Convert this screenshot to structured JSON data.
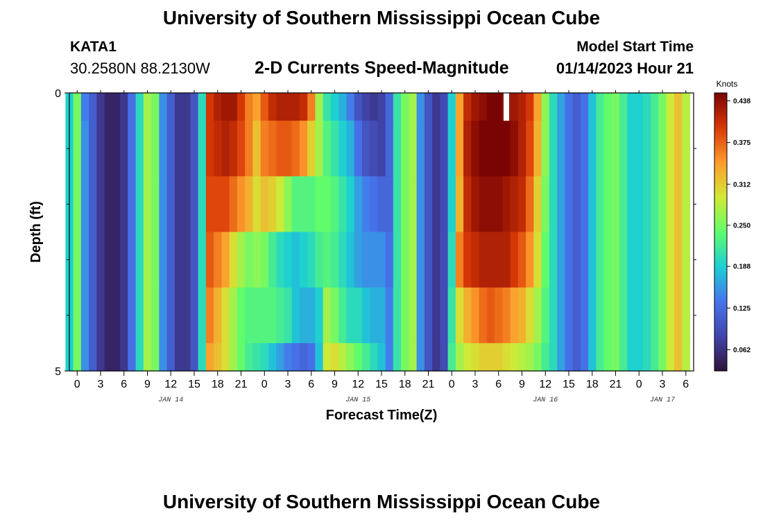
{
  "header": {
    "title": "University of Southern Mississippi Ocean Cube",
    "station": "KATA1",
    "coordinates": "30.2580N  88.2130W",
    "subtitle": "2-D Currents Speed-Magnitude",
    "model_start_label": "Model Start Time",
    "model_start_value": "01/14/2023 Hour 21"
  },
  "footer": {
    "title": "University of Southern Mississippi Ocean Cube"
  },
  "colors": {
    "colormap": [
      "#30123b",
      "#4145ab",
      "#4675ed",
      "#1bcfd4",
      "#61fc6c",
      "#d2e935",
      "#fe9b2d",
      "#d93806",
      "#7a0403"
    ],
    "gap_color": "#ffffff",
    "frame": "#000000"
  },
  "chart_data": {
    "type": "heatmap",
    "title": "2-D Currents Speed-Magnitude",
    "xlabel": "Forecast Time(Z)",
    "ylabel": "Depth (ft)",
    "colorbar_label": "Knots",
    "colorbar_ticks": [
      "0.062",
      "0.125",
      "0.188",
      "0.250",
      "0.312",
      "0.375",
      "0.438"
    ],
    "colorbar_tick_values": [
      0.062,
      0.125,
      0.188,
      0.25,
      0.312,
      0.375,
      0.438
    ],
    "vmin": 0.03,
    "vmax": 0.45,
    "x_unit": "forecast hour from 00Z Jan 14",
    "x_range": [
      -1,
      79
    ],
    "x_ticks": [
      0,
      3,
      6,
      9,
      12,
      15,
      18,
      21,
      24,
      27,
      30,
      33,
      36,
      39,
      42,
      45,
      48,
      51,
      54,
      57,
      60,
      63,
      66,
      69,
      72,
      75,
      78
    ],
    "x_tick_labels": [
      "0",
      "3",
      "6",
      "9",
      "12",
      "15",
      "18",
      "21",
      "0",
      "3",
      "6",
      "9",
      "12",
      "15",
      "18",
      "21",
      "0",
      "3",
      "6",
      "9",
      "12",
      "15",
      "18",
      "21",
      "0",
      "3",
      "6"
    ],
    "date_labels": [
      {
        "hour": 12,
        "text": "JAN 14"
      },
      {
        "hour": 36,
        "text": "JAN 15"
      },
      {
        "hour": 60,
        "text": "JAN 16"
      },
      {
        "hour": 75,
        "text": "JAN 17"
      }
    ],
    "y_ticks": [
      0,
      5
    ],
    "y_tick_labels": [
      "0",
      "5"
    ],
    "y_minor_ticks": [
      1,
      2,
      3,
      4
    ],
    "depth_bins_ft": [
      [
        0,
        0.5
      ],
      [
        0.5,
        1.5
      ],
      [
        1.5,
        2.5
      ],
      [
        2.5,
        3.5
      ],
      [
        3.5,
        4.5
      ],
      [
        4.5,
        5
      ]
    ],
    "missing_cells": [
      {
        "hour": 55,
        "depth_row": 0
      }
    ],
    "rows": [
      [
        0.19,
        0.25,
        0.14,
        0.11,
        0.07,
        0.05,
        0.05,
        0.07,
        0.13,
        0.2,
        0.27,
        0.25,
        0.15,
        0.11,
        0.07,
        0.07,
        0.1,
        0.2,
        0.4,
        0.42,
        0.43,
        0.43,
        0.4,
        0.36,
        0.34,
        0.38,
        0.41,
        0.42,
        0.42,
        0.42,
        0.41,
        0.36,
        0.27,
        0.21,
        0.19,
        0.17,
        0.14,
        0.1,
        0.08,
        0.07,
        0.08,
        0.12,
        0.21,
        0.25,
        0.27,
        0.15,
        0.1,
        0.07,
        0.09,
        0.19,
        0.34,
        0.41,
        0.43,
        0.44,
        0.45,
        0.45,
        0.44,
        0.43,
        0.42,
        0.4,
        0.34,
        0.26,
        0.2,
        0.16,
        0.13,
        0.11,
        0.13,
        0.18,
        0.22,
        0.24,
        0.25,
        0.22,
        0.19,
        0.19,
        0.2,
        0.22,
        0.25,
        0.29,
        0.32,
        0.28
      ],
      [
        0.19,
        0.25,
        0.15,
        0.11,
        0.07,
        0.05,
        0.05,
        0.07,
        0.13,
        0.2,
        0.27,
        0.25,
        0.15,
        0.11,
        0.07,
        0.07,
        0.1,
        0.2,
        0.4,
        0.41,
        0.42,
        0.41,
        0.39,
        0.36,
        0.32,
        0.36,
        0.37,
        0.38,
        0.38,
        0.37,
        0.35,
        0.31,
        0.27,
        0.23,
        0.21,
        0.19,
        0.17,
        0.13,
        0.1,
        0.09,
        0.08,
        0.12,
        0.21,
        0.25,
        0.27,
        0.15,
        0.1,
        0.07,
        0.09,
        0.19,
        0.34,
        0.42,
        0.44,
        0.45,
        0.45,
        0.45,
        0.45,
        0.44,
        0.42,
        0.39,
        0.33,
        0.26,
        0.2,
        0.16,
        0.13,
        0.11,
        0.13,
        0.18,
        0.22,
        0.24,
        0.25,
        0.22,
        0.19,
        0.19,
        0.2,
        0.22,
        0.25,
        0.29,
        0.32,
        0.28
      ],
      [
        0.19,
        0.25,
        0.15,
        0.11,
        0.07,
        0.05,
        0.05,
        0.07,
        0.13,
        0.2,
        0.27,
        0.25,
        0.15,
        0.11,
        0.07,
        0.07,
        0.1,
        0.2,
        0.39,
        0.39,
        0.39,
        0.37,
        0.35,
        0.33,
        0.3,
        0.32,
        0.31,
        0.29,
        0.26,
        0.23,
        0.23,
        0.23,
        0.24,
        0.24,
        0.23,
        0.21,
        0.19,
        0.16,
        0.14,
        0.13,
        0.12,
        0.12,
        0.21,
        0.25,
        0.27,
        0.15,
        0.1,
        0.07,
        0.09,
        0.19,
        0.33,
        0.41,
        0.43,
        0.44,
        0.44,
        0.44,
        0.43,
        0.42,
        0.41,
        0.37,
        0.31,
        0.25,
        0.2,
        0.16,
        0.13,
        0.11,
        0.13,
        0.18,
        0.22,
        0.24,
        0.25,
        0.22,
        0.19,
        0.19,
        0.2,
        0.22,
        0.25,
        0.29,
        0.32,
        0.28
      ],
      [
        0.19,
        0.25,
        0.15,
        0.11,
        0.07,
        0.05,
        0.05,
        0.07,
        0.13,
        0.2,
        0.27,
        0.25,
        0.15,
        0.11,
        0.07,
        0.07,
        0.1,
        0.2,
        0.38,
        0.36,
        0.34,
        0.3,
        0.27,
        0.25,
        0.26,
        0.25,
        0.22,
        0.2,
        0.19,
        0.18,
        0.19,
        0.2,
        0.22,
        0.23,
        0.22,
        0.2,
        0.18,
        0.16,
        0.15,
        0.15,
        0.15,
        0.13,
        0.21,
        0.25,
        0.27,
        0.15,
        0.1,
        0.07,
        0.09,
        0.2,
        0.36,
        0.4,
        0.41,
        0.42,
        0.42,
        0.42,
        0.42,
        0.4,
        0.38,
        0.35,
        0.3,
        0.24,
        0.2,
        0.16,
        0.13,
        0.11,
        0.13,
        0.18,
        0.22,
        0.24,
        0.25,
        0.22,
        0.19,
        0.19,
        0.2,
        0.22,
        0.25,
        0.29,
        0.32,
        0.28
      ],
      [
        0.19,
        0.25,
        0.15,
        0.11,
        0.07,
        0.05,
        0.05,
        0.07,
        0.13,
        0.2,
        0.27,
        0.25,
        0.15,
        0.11,
        0.07,
        0.07,
        0.1,
        0.2,
        0.36,
        0.33,
        0.3,
        0.27,
        0.24,
        0.23,
        0.23,
        0.23,
        0.23,
        0.22,
        0.21,
        0.18,
        0.17,
        0.17,
        0.19,
        0.27,
        0.25,
        0.22,
        0.2,
        0.2,
        0.18,
        0.17,
        0.17,
        0.14,
        0.21,
        0.25,
        0.27,
        0.15,
        0.1,
        0.07,
        0.09,
        0.21,
        0.3,
        0.33,
        0.35,
        0.37,
        0.38,
        0.37,
        0.36,
        0.34,
        0.33,
        0.3,
        0.27,
        0.23,
        0.2,
        0.16,
        0.13,
        0.11,
        0.13,
        0.18,
        0.22,
        0.24,
        0.25,
        0.22,
        0.19,
        0.19,
        0.2,
        0.22,
        0.25,
        0.29,
        0.32,
        0.28
      ],
      [
        0.19,
        0.25,
        0.15,
        0.11,
        0.07,
        0.05,
        0.05,
        0.07,
        0.13,
        0.2,
        0.27,
        0.25,
        0.15,
        0.11,
        0.07,
        0.07,
        0.1,
        0.2,
        0.34,
        0.32,
        0.3,
        0.27,
        0.24,
        0.22,
        0.21,
        0.2,
        0.18,
        0.16,
        0.14,
        0.13,
        0.12,
        0.13,
        0.18,
        0.29,
        0.3,
        0.28,
        0.26,
        0.24,
        0.22,
        0.2,
        0.18,
        0.14,
        0.21,
        0.25,
        0.27,
        0.15,
        0.1,
        0.07,
        0.09,
        0.22,
        0.27,
        0.29,
        0.3,
        0.31,
        0.31,
        0.31,
        0.3,
        0.29,
        0.28,
        0.27,
        0.25,
        0.22,
        0.2,
        0.16,
        0.13,
        0.11,
        0.13,
        0.18,
        0.22,
        0.24,
        0.25,
        0.22,
        0.19,
        0.19,
        0.2,
        0.22,
        0.25,
        0.29,
        0.32,
        0.28
      ]
    ]
  }
}
